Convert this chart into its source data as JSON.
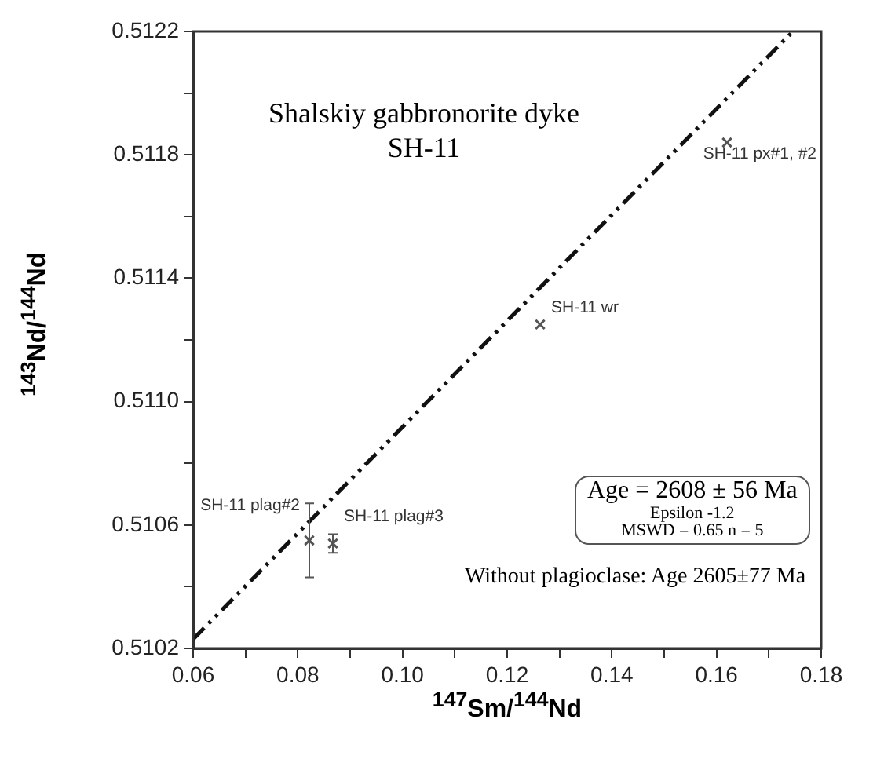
{
  "chart_data": {
    "type": "scatter",
    "xlabel": "$^{147}$Sm/$^{144}$Nd",
    "ylabel": "$^{143}$Nd/$^{144}$Nd",
    "xlim": [
      0.06,
      0.18
    ],
    "ylim": [
      0.5102,
      0.5122
    ],
    "xticks": [
      0.06,
      {
        "value": 0.07,
        "label": null
      },
      0.08,
      {
        "value": 0.09,
        "label": null
      },
      "0.10",
      {
        "value": 0.11,
        "label": null
      },
      0.12,
      {
        "value": 0.13,
        "label": null
      },
      0.14,
      {
        "value": 0.15,
        "label": null
      },
      0.16,
      {
        "value": 0.17,
        "label": null
      },
      0.18
    ],
    "yticks": [
      0.5102,
      {
        "value": 0.5104,
        "label": null
      },
      0.5106,
      {
        "value": 0.5108,
        "label": null
      },
      {
        "value": 0.511,
        "label": "0.5110"
      },
      {
        "value": 0.5112,
        "label": null
      },
      0.5114,
      {
        "value": 0.5116,
        "label": null
      },
      0.5118,
      {
        "value": 0.512,
        "label": null
      },
      0.5122
    ],
    "grid": false,
    "marker": "cross",
    "series": [
      {
        "color": "#555555",
        "x": [
          0.0822,
          0.0867,
          0.1263,
          0.162
        ],
        "values": [
          0.51055,
          0.51054,
          0.51125,
          0.51184
        ],
        "errors": [
          0.00012,
          3e-05,
          null,
          null
        ]
      },
      {
        "type": "line",
        "color": "#111111",
        "line_style": "dashed",
        "marker": "none",
        "x": [
          0.06,
          0.1746
        ],
        "values": [
          0.51023,
          0.5122
        ]
      }
    ],
    "annotations": [
      "Shalskiy gabbronorite dyke",
      "SH-11",
      "Age = 2608 ± 56 Ma",
      "Epsilon -1.2",
      "MSWD = 0.65  n = 5",
      "Without plagioclase: Age 2605±77 Ma",
      {
        "text": "SH-11 plag#2",
        "x": 0.0822,
        "y": 0.51055
      },
      {
        "text": "SH-11 plag#3",
        "x": 0.0867,
        "y": 0.51054
      },
      {
        "text": "SH-11 wr",
        "x": 0.1263,
        "y": 0.51125
      },
      {
        "text": "SH-11 px#1, #2",
        "x": 0.162,
        "y": 0.51184
      }
    ]
  }
}
